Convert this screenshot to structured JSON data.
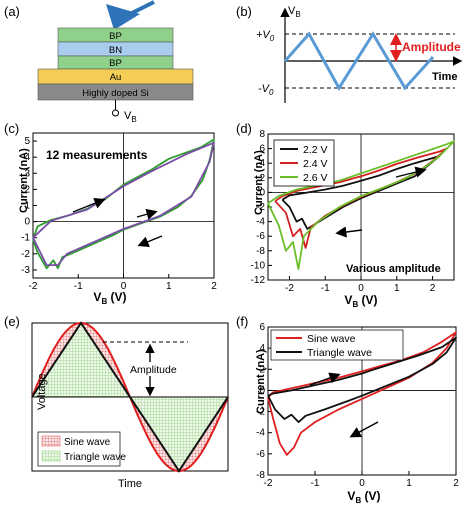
{
  "panels": {
    "a": {
      "label": "(a)",
      "layers": [
        "BP",
        "BN",
        "BP",
        "Au",
        "Highly doped Si"
      ],
      "terminal": "V",
      "terminal_sub": "B",
      "colors": {
        "BP": "#8fd18a",
        "BN": "#a9cdef",
        "Au": "#f3cd55",
        "Si": "#8a8a8a",
        "tip": "#2e73b8"
      }
    },
    "b": {
      "label": "(b)",
      "ylabel": "V",
      "ylabel_sub": "B",
      "pos_label": "+V",
      "neg_label": "-V",
      "level_sub": "0",
      "amplitude": "Amplitude",
      "xlabel": "Time",
      "wave_color": "#5a9bd5",
      "amp_color": "#e02020"
    },
    "c": {
      "label": "(c)",
      "annotation": "12 measurements"
    },
    "d": {
      "label": "(d)",
      "annotation": "Various amplitude"
    },
    "e": {
      "label": "(e)",
      "ylabel": "Voltage",
      "xlabel": "Time",
      "amplitude": "Amplitude",
      "legend": [
        "Sine wave",
        "Triangle wave"
      ]
    },
    "f": {
      "label": "(f)"
    }
  },
  "chart_data": [
    {
      "panel": "c",
      "type": "line",
      "xlabel": "V_B (V)",
      "ylabel": "Current (nA)",
      "xlim": [
        -2,
        2
      ],
      "ylim": [
        -3.5,
        5.5
      ],
      "xticks": [
        -2,
        -1,
        0,
        1,
        2
      ],
      "yticks": [
        -3,
        -2,
        -1,
        0,
        1,
        2,
        3,
        4,
        5
      ],
      "annotations": [
        "12 measurements"
      ],
      "series": [
        {
          "color": "#2e9e2e",
          "x": [
            -2,
            -1.9,
            -1.7,
            -1.55,
            -1.45,
            -1.35,
            -1.25,
            -1.0,
            -0.6,
            -0.2,
            0,
            0.4,
            0.8,
            1.2,
            1.5,
            1.75,
            1.9,
            2,
            1.7,
            1.4,
            1.0,
            0.6,
            0.2,
            0,
            -0.4,
            -0.8,
            -1.2,
            -1.6,
            -1.9,
            -2
          ],
          "y": [
            -1.1,
            -1.9,
            -2.9,
            -2.4,
            -2.9,
            -2.2,
            -2.1,
            -1.8,
            -1.3,
            -0.8,
            -0.5,
            -0.1,
            0.3,
            0.9,
            1.6,
            2.6,
            3.8,
            5.1,
            4.6,
            4.3,
            3.9,
            3.2,
            2.6,
            2.3,
            1.4,
            0.8,
            0.4,
            0.1,
            -0.3,
            -1.1
          ]
        },
        {
          "color": "#7a4ea8",
          "x": [
            -2,
            -1.7,
            -1.45,
            -1.25,
            -0.6,
            0,
            0.8,
            1.5,
            1.9,
            2,
            1.4,
            0.6,
            0,
            -0.8,
            -1.6,
            -2
          ],
          "y": [
            -1.0,
            -2.7,
            -2.7,
            -2.0,
            -1.2,
            -0.45,
            0.35,
            1.55,
            3.7,
            4.9,
            4.2,
            3.1,
            2.2,
            0.75,
            0.05,
            -1.0
          ]
        }
      ]
    },
    {
      "panel": "d",
      "type": "line",
      "xlabel": "V_B (V)",
      "ylabel": "Current (nA)",
      "xlim": [
        -2.6,
        2.6
      ],
      "ylim": [
        -12,
        8
      ],
      "xticks": [
        -2,
        -1,
        0,
        1,
        2
      ],
      "yticks": [
        -12,
        -10,
        -8,
        -6,
        -4,
        -2,
        0,
        2,
        4,
        6,
        8
      ],
      "annotations": [
        "Various amplitude"
      ],
      "series": [
        {
          "name": "2.2 V",
          "color": "#111111",
          "x": [
            -2.2,
            -2.0,
            -1.8,
            -1.65,
            -1.5,
            -1.0,
            -0.5,
            0,
            0.5,
            1.0,
            1.5,
            1.9,
            2.2,
            2.0,
            1.5,
            1.0,
            0.5,
            0,
            -0.5,
            -1.0,
            -1.6,
            -2.0,
            -2.2
          ],
          "y": [
            -1.0,
            -2.0,
            -4.0,
            -3.6,
            -5.0,
            -3.5,
            -2.0,
            -0.8,
            0.2,
            1.2,
            2.2,
            3.8,
            5.0,
            4.7,
            4.0,
            3.2,
            2.3,
            1.6,
            0.9,
            0.4,
            -0.1,
            -0.4,
            -1.0
          ]
        },
        {
          "name": "2.4 V",
          "color": "#d42020",
          "x": [
            -2.4,
            -2.1,
            -1.9,
            -1.7,
            -1.55,
            -1.4,
            -1.0,
            -0.5,
            0,
            0.5,
            1.0,
            1.6,
            2.0,
            2.4,
            2.2,
            1.6,
            1.0,
            0.5,
            0,
            -0.6,
            -1.2,
            -1.8,
            -2.2,
            -2.4
          ],
          "y": [
            -1.2,
            -2.8,
            -6.0,
            -5.0,
            -7.6,
            -4.8,
            -3.2,
            -1.8,
            -0.6,
            0.4,
            1.4,
            2.8,
            4.3,
            6.0,
            5.6,
            4.8,
            3.9,
            3.0,
            2.2,
            1.4,
            0.8,
            0.2,
            -0.5,
            -1.2
          ]
        },
        {
          "name": "2.6 V",
          "color": "#6abf2a",
          "x": [
            -2.6,
            -2.3,
            -2.1,
            -1.9,
            -1.75,
            -1.6,
            -1.2,
            -0.6,
            0,
            0.6,
            1.2,
            1.8,
            2.2,
            2.6,
            2.4,
            1.8,
            1.2,
            0.6,
            0,
            -0.6,
            -1.2,
            -1.8,
            -2.3,
            -2.6
          ],
          "y": [
            -1.5,
            -4.5,
            -8.0,
            -6.8,
            -10.5,
            -6.0,
            -4.0,
            -2.0,
            -0.5,
            0.6,
            1.8,
            3.5,
            5.0,
            7.0,
            6.6,
            5.6,
            4.6,
            3.6,
            2.6,
            1.6,
            1.0,
            0.4,
            -0.5,
            -1.5
          ]
        }
      ]
    },
    {
      "panel": "e",
      "type": "line",
      "xlabel": "Time",
      "ylabel": "Voltage",
      "xlim": [
        0,
        4
      ],
      "ylim": [
        -1,
        1
      ],
      "annotations": [
        "Amplitude"
      ],
      "series": [
        {
          "name": "Sine wave",
          "color": "#e02020",
          "shape": "sine",
          "amplitude": 1,
          "period": 4
        },
        {
          "name": "Triangle wave",
          "color": "#111111",
          "shape": "triangle",
          "amplitude": 1,
          "period": 4
        }
      ]
    },
    {
      "panel": "f",
      "type": "line",
      "xlabel": "V_B (V)",
      "ylabel": "Current (nA)",
      "xlim": [
        -2,
        2
      ],
      "ylim": [
        -8,
        6
      ],
      "xticks": [
        -2,
        -1,
        0,
        1,
        2
      ],
      "yticks": [
        -8,
        -6,
        -4,
        -2,
        0,
        2,
        4,
        6
      ],
      "series": [
        {
          "name": "Sine wave",
          "color": "#e02020",
          "x": [
            -2,
            -1.9,
            -1.75,
            -1.6,
            -1.45,
            -1.3,
            -1.0,
            -0.5,
            0,
            0.5,
            1.0,
            1.5,
            1.8,
            2,
            1.7,
            1.3,
            0.8,
            0.3,
            0,
            -0.5,
            -1.0,
            -1.5,
            -1.9,
            -2
          ],
          "y": [
            -0.7,
            -2.5,
            -5.0,
            -6.1,
            -5.4,
            -4.0,
            -3.0,
            -1.8,
            -0.8,
            0.2,
            1.2,
            2.6,
            4.0,
            5.5,
            4.6,
            3.6,
            2.8,
            2.2,
            1.8,
            1.2,
            0.7,
            0.2,
            -0.2,
            -0.7
          ]
        },
        {
          "name": "Triangle wave",
          "color": "#111111",
          "x": [
            -2,
            -1.85,
            -1.65,
            -1.5,
            -1.35,
            -1.2,
            -0.8,
            -0.3,
            0,
            0.5,
            1.0,
            1.5,
            1.8,
            2,
            1.7,
            1.2,
            0.7,
            0.2,
            0,
            -0.5,
            -1.0,
            -1.5,
            -1.9,
            -2
          ],
          "y": [
            -0.5,
            -1.8,
            -2.7,
            -2.3,
            -3.0,
            -2.4,
            -1.8,
            -1.0,
            -0.5,
            0.4,
            1.3,
            2.5,
            3.6,
            5.0,
            4.1,
            3.3,
            2.6,
            1.9,
            1.6,
            1.0,
            0.5,
            0.0,
            -0.3,
            -0.5
          ]
        }
      ]
    }
  ]
}
